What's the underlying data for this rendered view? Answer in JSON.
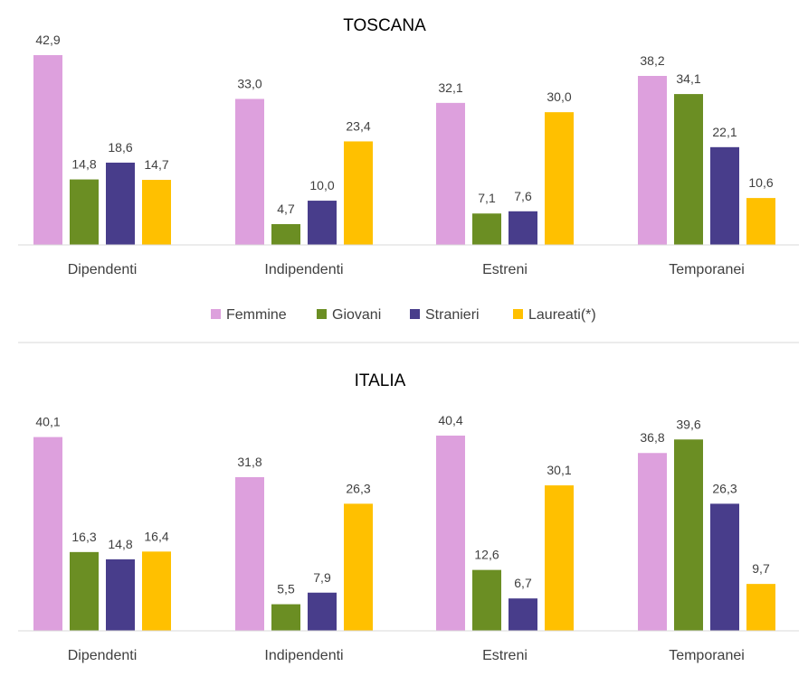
{
  "legend": [
    {
      "name": "Femmine",
      "color": "#DDA0DD"
    },
    {
      "name": "Giovani",
      "color": "#6B8E23"
    },
    {
      "name": "Stranieri",
      "color": "#483D8B"
    },
    {
      "name": "Laureati(*)",
      "color": "#FFC000"
    }
  ],
  "chart_data": [
    {
      "type": "bar",
      "title": "TOSCANA",
      "categories": [
        "Dipendenti",
        "Indipendenti",
        "Estreni",
        "Temporanei"
      ],
      "series": [
        {
          "name": "Femmine",
          "values": [
            42.9,
            33.0,
            32.1,
            38.2
          ],
          "labels": [
            "42,9",
            "33,0",
            "32,1",
            "38,2"
          ]
        },
        {
          "name": "Giovani",
          "values": [
            14.8,
            4.7,
            7.1,
            34.1
          ],
          "labels": [
            "14,8",
            "4,7",
            "7,1",
            "34,1"
          ]
        },
        {
          "name": "Stranieri",
          "values": [
            18.6,
            10.0,
            7.6,
            22.1
          ],
          "labels": [
            "18,6",
            "10,0",
            "7,6",
            "22,1"
          ]
        },
        {
          "name": "Laureati(*)",
          "values": [
            14.7,
            23.4,
            30.0,
            10.6
          ],
          "labels": [
            "14,7",
            "23,4",
            "30,0",
            "10,6"
          ]
        }
      ],
      "legend_position": "bottom",
      "grid": false
    },
    {
      "type": "bar",
      "title": "ITALIA",
      "categories": [
        "Dipendenti",
        "Indipendenti",
        "Estreni",
        "Temporanei"
      ],
      "series": [
        {
          "name": "Femmine",
          "values": [
            40.1,
            31.8,
            40.4,
            36.8
          ],
          "labels": [
            "40,1",
            "31,8",
            "40,4",
            "36,8"
          ]
        },
        {
          "name": "Giovani",
          "values": [
            16.3,
            5.5,
            12.6,
            39.6
          ],
          "labels": [
            "16,3",
            "5,5",
            "12,6",
            "39,6"
          ]
        },
        {
          "name": "Stranieri",
          "values": [
            14.8,
            7.9,
            6.7,
            26.3
          ],
          "labels": [
            "14,8",
            "7,9",
            "6,7",
            "26,3"
          ]
        },
        {
          "name": "Laureati(*)",
          "values": [
            16.4,
            26.3,
            30.1,
            9.7
          ],
          "labels": [
            "16,4",
            "26,3",
            "30,1",
            "9,7"
          ]
        }
      ],
      "grid": false
    }
  ]
}
